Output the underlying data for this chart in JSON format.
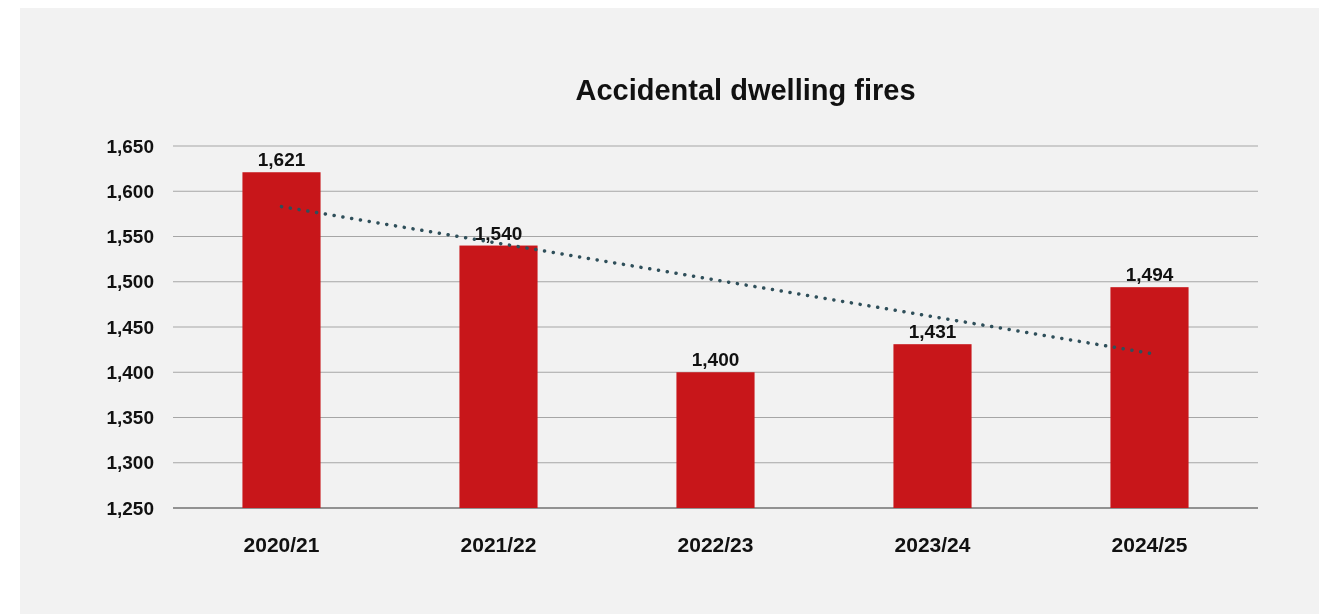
{
  "chart_data": {
    "type": "bar",
    "title": "Accidental dwelling fires",
    "categories": [
      "2020/21",
      "2021/22",
      "2022/23",
      "2023/24",
      "2024/25"
    ],
    "series": [
      {
        "color": "#c8161a",
        "values": [
          1621,
          1540,
          1400,
          1431,
          1494
        ],
        "value_labels": [
          "1,621",
          "1,540",
          "1,400",
          "1,431",
          "1,494"
        ]
      },
      {
        "type": "line",
        "color": "#2f4f5a",
        "x": [
          "2020/21",
          "2024/25"
        ],
        "values": [
          1583,
          1421
        ]
      }
    ],
    "ylim": [
      1250,
      1650
    ],
    "yticks": [
      {
        "value": 1250,
        "label": "1,250"
      },
      {
        "value": 1300,
        "label": "1,300"
      },
      {
        "value": 1350,
        "label": "1,350"
      },
      {
        "value": 1400,
        "label": "1,400"
      },
      {
        "value": 1450,
        "label": "1,450"
      },
      {
        "value": 1500,
        "label": "1,500"
      },
      {
        "value": 1550,
        "label": "1,550"
      },
      {
        "value": 1600,
        "label": "1,600"
      },
      {
        "value": 1650,
        "label": "1,650"
      }
    ],
    "grid": "y",
    "line_style": "dotted"
  }
}
